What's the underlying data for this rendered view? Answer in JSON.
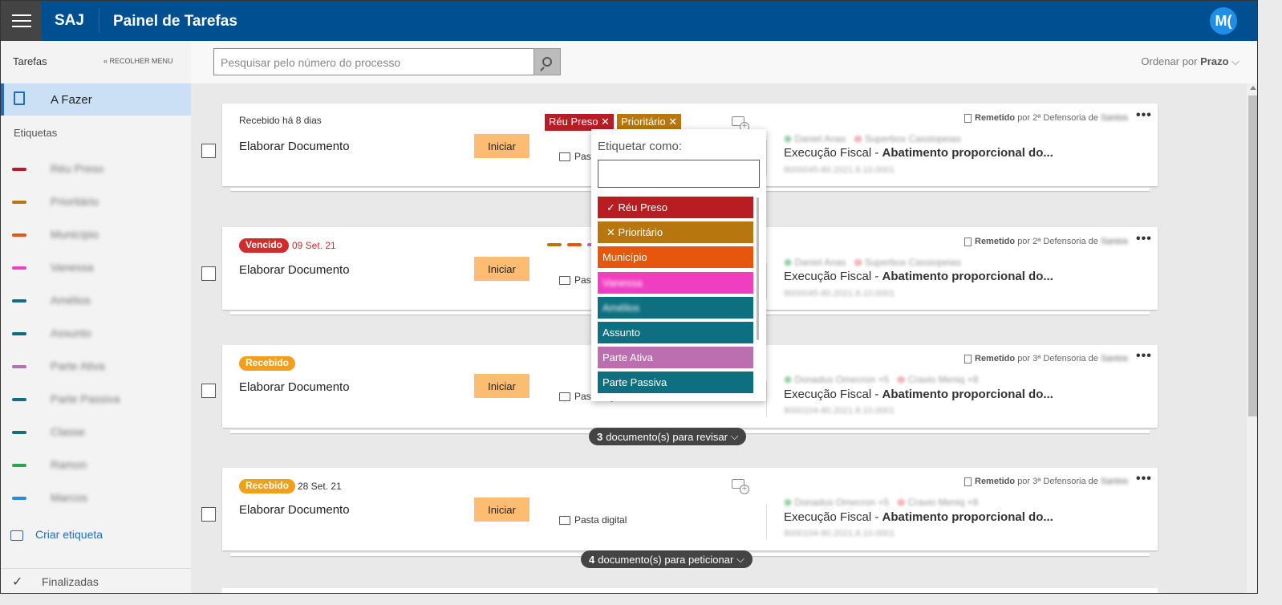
{
  "header": {
    "brand": "SAJ",
    "title": "Painel de Tarefas",
    "avatar": "M("
  },
  "sidebar": {
    "title": "Tarefas",
    "collapse": "« RECOLHER MENU",
    "active_item": "A Fazer",
    "tags_heading": "Etiquetas",
    "tags": [
      {
        "label": "Réu Preso",
        "color": "#b81d24"
      },
      {
        "label": "Prioritário",
        "color": "#b8760f"
      },
      {
        "label": "Município",
        "color": "#e6560d"
      },
      {
        "label": "Vanessa",
        "color": "#f03ec1"
      },
      {
        "label": "Amélios",
        "color": "#0d6f7f"
      },
      {
        "label": "Assunto",
        "color": "#0d6f7f"
      },
      {
        "label": "Parte Ativa",
        "color": "#bc6fb0"
      },
      {
        "label": "Parte Passiva",
        "color": "#0d6f7f"
      },
      {
        "label": "Classe",
        "color": "#0d6f7f"
      },
      {
        "label": "Ramon",
        "color": "#2aa64b"
      },
      {
        "label": "Marcos",
        "color": "#1f8fe6"
      }
    ],
    "create_tag": "Criar etiqueta",
    "finished": "Finalizadas"
  },
  "search": {
    "placeholder": "Pesquisar pelo número do processo"
  },
  "order": {
    "label": "Ordenar por",
    "value": "Prazo"
  },
  "cards": [
    {
      "received": "Recebido há 8 dias",
      "title": "Elaborar Documento",
      "button": "Iniciar",
      "folder": "Pasta digital",
      "remetido": "Remetido",
      "remetido_by": "por 2ª Defensoria de",
      "remetido_blur": "Santos",
      "parte_a": "Daniel Anas",
      "parte_b": "Superbox Cassiopeias",
      "classe": "Execução Fiscal -",
      "assunto": "Abatimento proporcional do...",
      "processo": "8000045-80.2021.8.10.0001",
      "tags": [
        "Réu Preso",
        "Prioritário"
      ]
    },
    {
      "badge": "Vencido",
      "date": "09 Set. 21",
      "title": "Elaborar Documento",
      "button": "Iniciar",
      "folder": "Pasta digital",
      "remetido": "Remetido",
      "remetido_by": "por 2ª Defensoria de",
      "remetido_blur": "Santos",
      "parte_a": "Daniel Anas",
      "parte_b": "Superbox Cassiopeias",
      "classe": "Execução Fiscal -",
      "assunto": "Abatimento proporcional do...",
      "processo": "8000045-80.2021.8.10.0001"
    },
    {
      "badge": "Recebido",
      "title": "Elaborar Documento",
      "button": "Iniciar",
      "folder": "Pasta digital",
      "remetido": "Remetido",
      "remetido_by": "por 3ª Defensoria de",
      "remetido_blur": "Santos",
      "parte_a": "Donadus Omecron +5",
      "parte_b": "Cravio Meniq +8",
      "classe": "Execução Fiscal -",
      "assunto": "Abatimento proporcional do...",
      "processo": "8000104-80.2021.8.10.0001",
      "docs_count": "3",
      "docs_label": "documento(s) para revisar"
    },
    {
      "badge": "Recebido",
      "date": "28 Set. 21",
      "title": "Elaborar Documento",
      "button": "Iniciar",
      "folder": "Pasta digital",
      "remetido": "Remetido",
      "remetido_by": "por 3ª Defensoria de",
      "remetido_blur": "Santos",
      "parte_a": "Donadus Omecron +5",
      "parte_b": "Cravio Meniq +8",
      "classe": "Execução Fiscal -",
      "assunto": "Abatimento proporcional do...",
      "processo": "8000104-80.2021.8.10.0001",
      "docs_count": "4",
      "docs_label": "documento(s) para peticionar"
    }
  ],
  "dropdown": {
    "label": "Etiquetar como:",
    "options": [
      {
        "label": "Réu Preso",
        "color": "#b81d24",
        "state": "✓"
      },
      {
        "label": "Prioritário",
        "color": "#b8760f",
        "state": "✕"
      },
      {
        "label": "Município",
        "color": "#e6560d"
      },
      {
        "label": "Vanessa",
        "color": "#f03ec1"
      },
      {
        "label": "Amélios",
        "color": "#0d6f7f"
      },
      {
        "label": "Assunto",
        "color": "#0d6f7f"
      },
      {
        "label": "Parte Ativa",
        "color": "#bc6fb0"
      },
      {
        "label": "Parte Passiva",
        "color": "#0d6f7f"
      }
    ]
  }
}
